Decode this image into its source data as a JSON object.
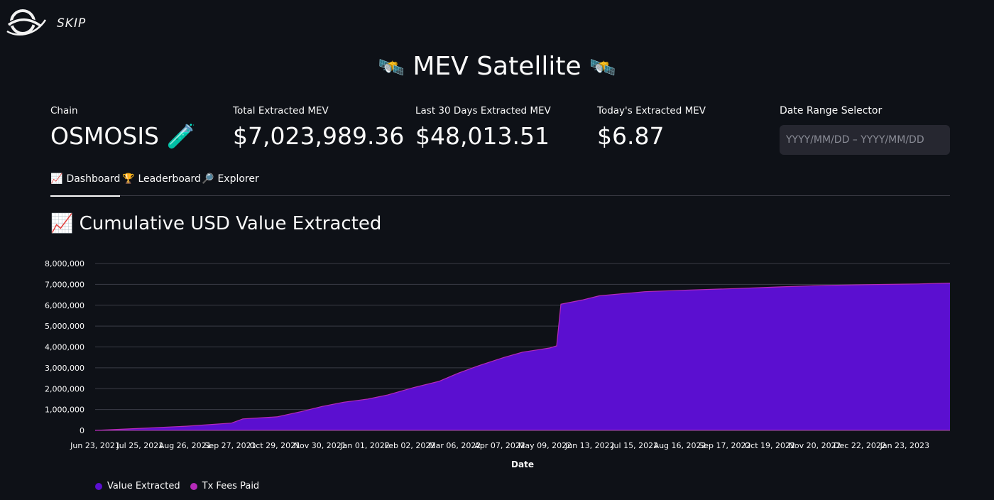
{
  "brand": {
    "name": "SKIP",
    "logo_icon": "skip-orbit-logo"
  },
  "header": {
    "title": "MEV Satellite",
    "title_icon": "🛰️"
  },
  "metrics": [
    {
      "label": "Chain",
      "value": "OSMOSIS",
      "icon": "🧪"
    },
    {
      "label": "Total Extracted MEV",
      "value": "$7,023,989.36"
    },
    {
      "label": "Last 30 Days Extracted MEV",
      "value": "$48,013.51"
    },
    {
      "label": "Today's Extracted MEV",
      "value": "$6.87"
    }
  ],
  "date_range": {
    "label": "Date Range Selector",
    "placeholder": "YYYY/MM/DD – YYYY/MM/DD"
  },
  "tabs": [
    {
      "label": "Dashboard",
      "icon": "📈",
      "active": true
    },
    {
      "label": "Leaderboard",
      "icon": "🏆",
      "active": false
    },
    {
      "label": "Explorer",
      "icon": "🔎",
      "active": false
    }
  ],
  "section": {
    "title": "Cumulative USD Value Extracted",
    "icon": "📈"
  },
  "chart_data": {
    "type": "area",
    "xlabel": "Date",
    "ylabel": "",
    "ylim": [
      0,
      8000000
    ],
    "yticks": [
      0,
      1000000,
      2000000,
      3000000,
      4000000,
      5000000,
      6000000,
      7000000,
      8000000
    ],
    "ytick_labels": [
      "0",
      "1,000,000",
      "2,000,000",
      "3,000,000",
      "4,000,000",
      "5,000,000",
      "6,000,000",
      "7,000,000",
      "8,000,000"
    ],
    "xtick_labels": [
      "Jun 23, 2021",
      "Jul 25, 2021",
      "Aug 26, 2021",
      "Sep 27, 2021",
      "Oct 29, 2021",
      "Nov 30, 2021",
      "Jan 01, 2022",
      "Feb 02, 2022",
      "Mar 06, 2022",
      "Apr 07, 2022",
      "May 09, 2022",
      "Jun 13, 2022",
      "Jul 15, 2022",
      "Aug 16, 2022",
      "Sep 17, 2022",
      "Oct 19, 2022",
      "Nov 20, 2022",
      "Dec 22, 2022",
      "Jan 23, 2023"
    ],
    "grid": true,
    "legend_placement": "bottom-left",
    "series": [
      {
        "name": "Value Extracted",
        "color": "#5b0fd0",
        "x": [
          "2021-06-23",
          "2021-07-25",
          "2021-08-26",
          "2021-09-27",
          "2021-10-05",
          "2021-10-29",
          "2021-11-15",
          "2021-11-30",
          "2021-12-15",
          "2022-01-01",
          "2022-01-15",
          "2022-02-02",
          "2022-02-20",
          "2022-03-06",
          "2022-03-20",
          "2022-04-07",
          "2022-04-20",
          "2022-05-09",
          "2022-05-14",
          "2022-05-17",
          "2022-06-01",
          "2022-06-13",
          "2022-07-15",
          "2022-08-16",
          "2022-09-17",
          "2022-10-19",
          "2022-11-20",
          "2022-12-22",
          "2023-01-23",
          "2023-02-15"
        ],
        "values": [
          0,
          100000,
          200000,
          350000,
          550000,
          650000,
          900000,
          1150000,
          1350000,
          1500000,
          1700000,
          2050000,
          2350000,
          2750000,
          3100000,
          3500000,
          3750000,
          3950000,
          4050000,
          6050000,
          6250000,
          6450000,
          6650000,
          6730000,
          6800000,
          6880000,
          6950000,
          6990000,
          7020000,
          7060000
        ]
      },
      {
        "name": "Tx Fees Paid",
        "color": "#b52ab8",
        "x": [
          "2021-06-23",
          "2023-02-15"
        ],
        "values": [
          10000,
          15000
        ]
      }
    ]
  }
}
